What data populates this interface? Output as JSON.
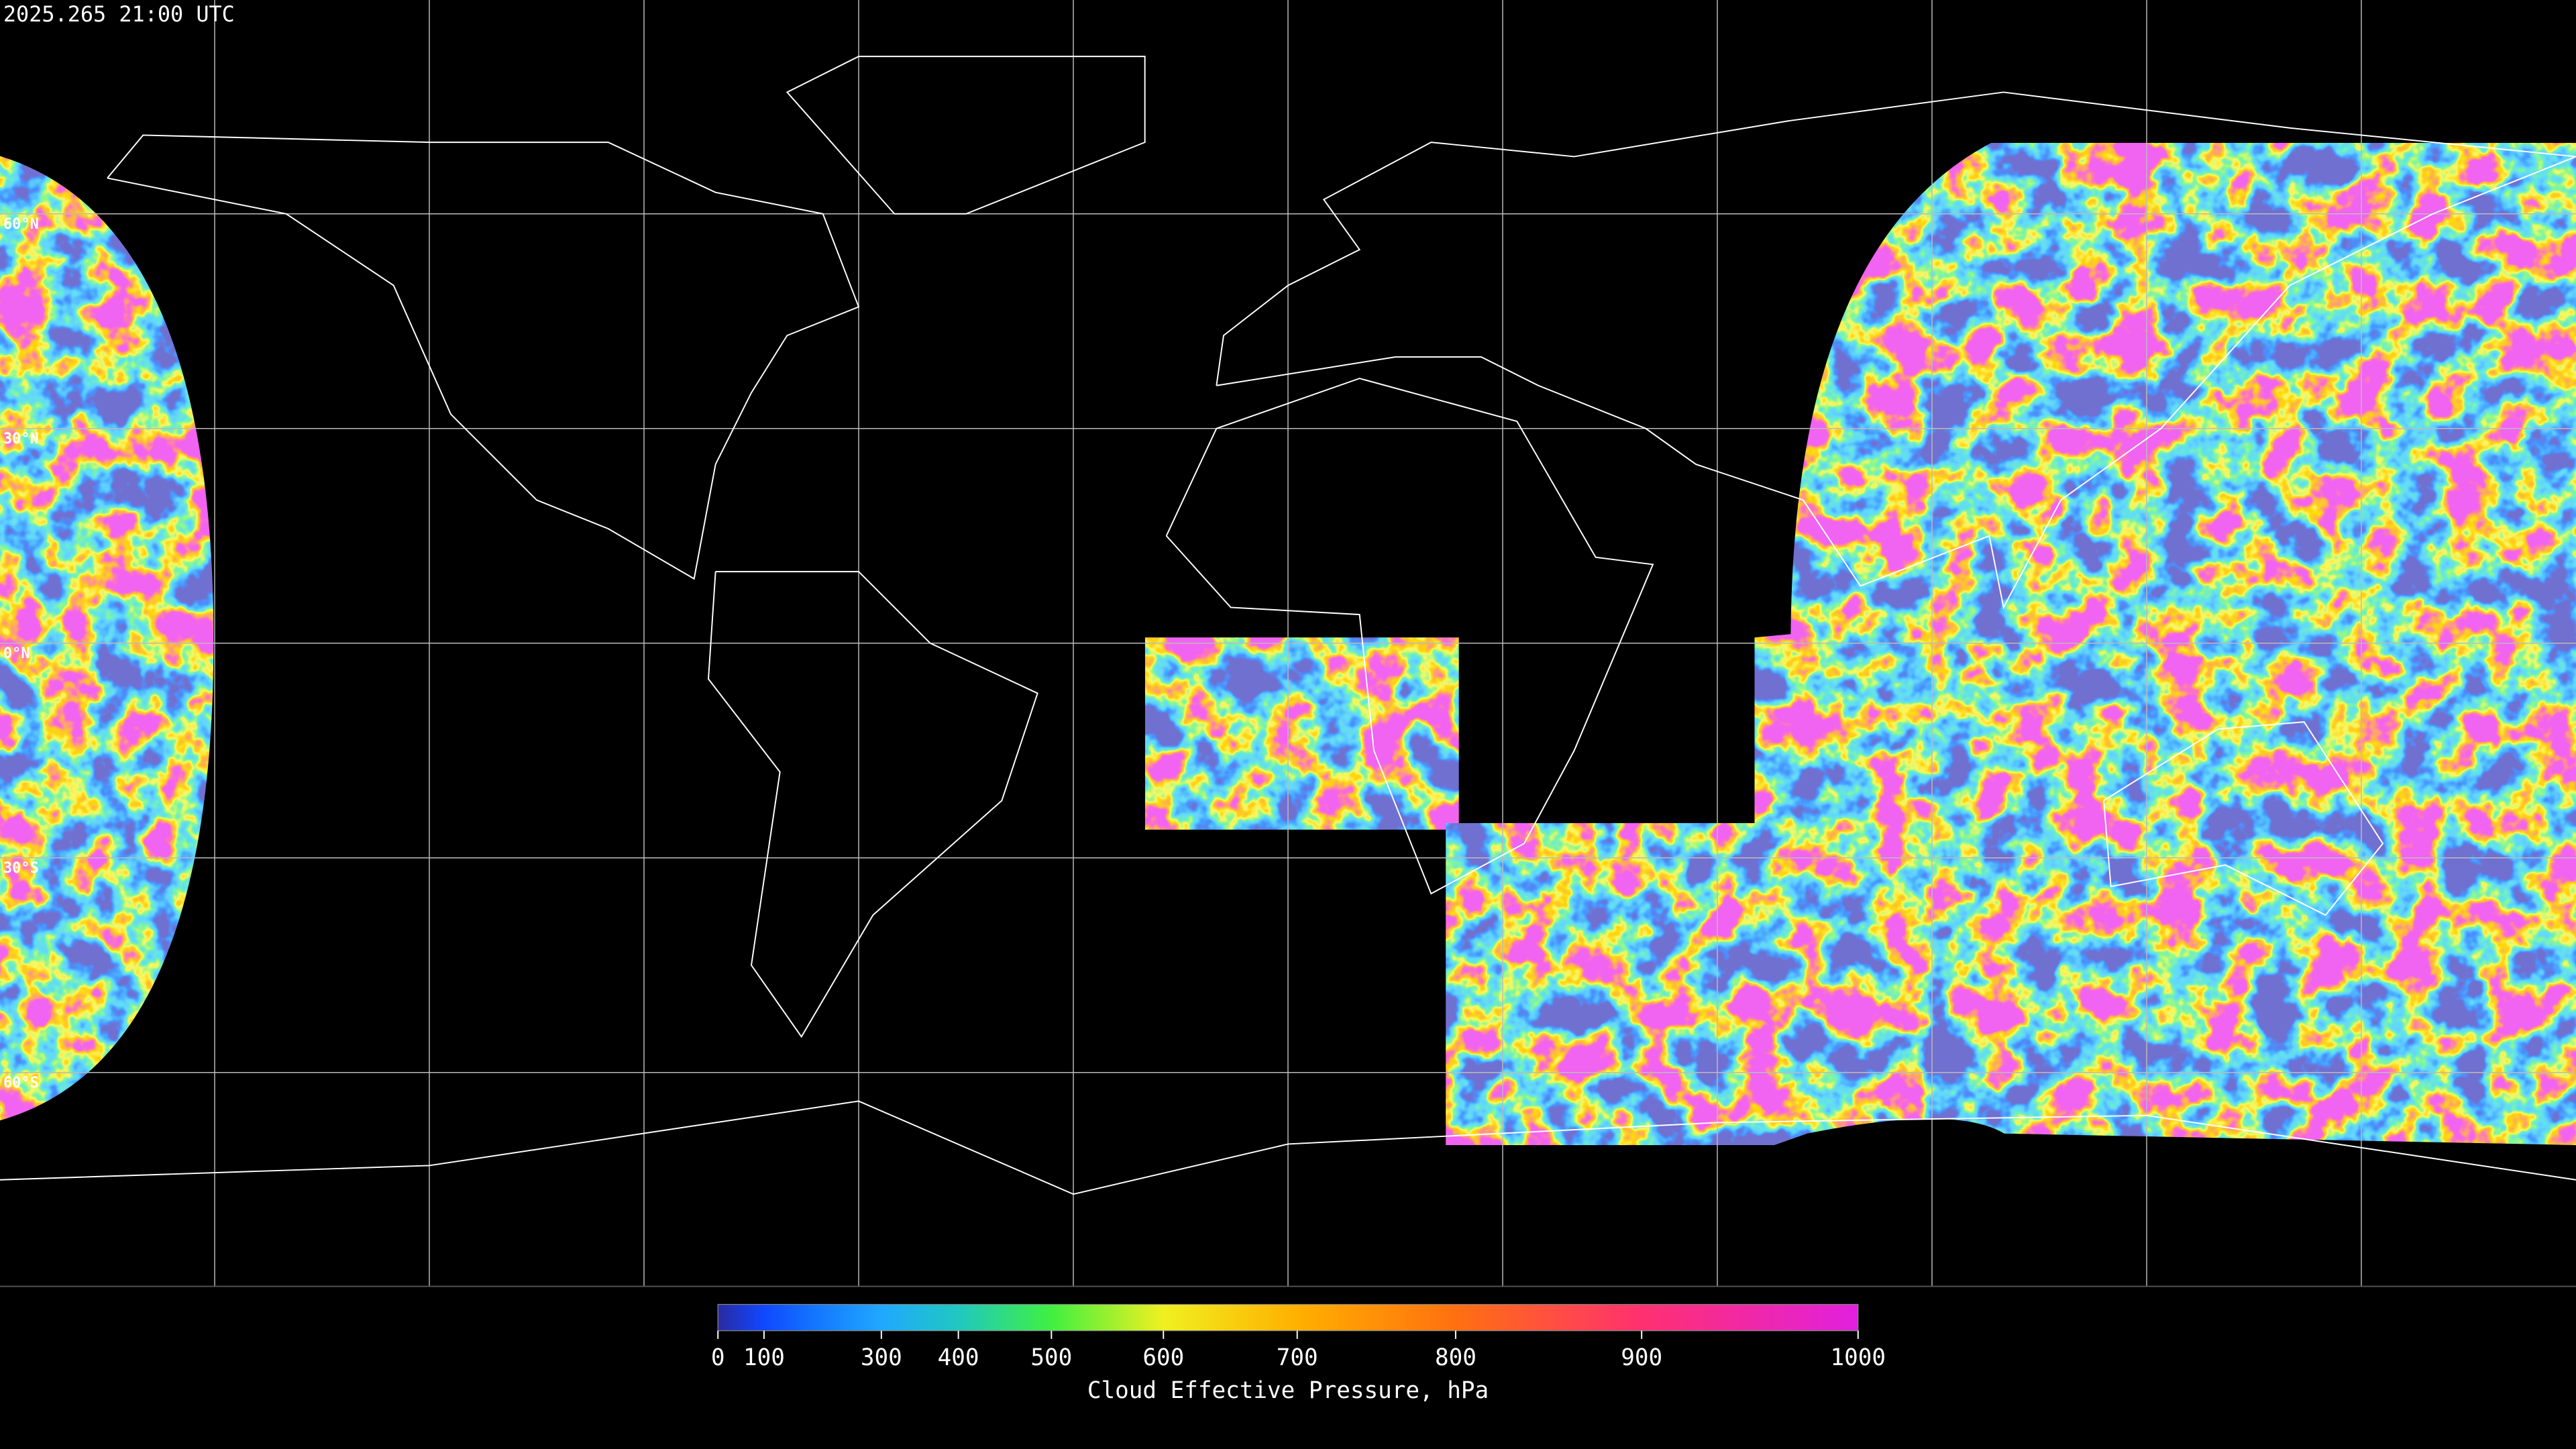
{
  "timestamp": "2025.265 21:00 UTC",
  "map": {
    "lat_labels": [
      {
        "value": 60,
        "label": "60°N"
      },
      {
        "value": 30,
        "label": "30°N"
      },
      {
        "value": 0,
        "label": "0°N"
      },
      {
        "value": -30,
        "label": "30°S"
      },
      {
        "value": -60,
        "label": "60°S"
      }
    ]
  },
  "colorbar": {
    "title": "Cloud Effective Pressure, hPa",
    "range": [
      0,
      1000
    ],
    "ticks": [
      0,
      100,
      300,
      400,
      500,
      600,
      700,
      800,
      900,
      1000
    ],
    "colormap": [
      "#2a2aa0",
      "#1048ff",
      "#1478ff",
      "#20a8ff",
      "#20c8c0",
      "#40f040",
      "#f0f020",
      "#ffb000",
      "#ff7010",
      "#ff3070",
      "#e020e0"
    ]
  }
}
